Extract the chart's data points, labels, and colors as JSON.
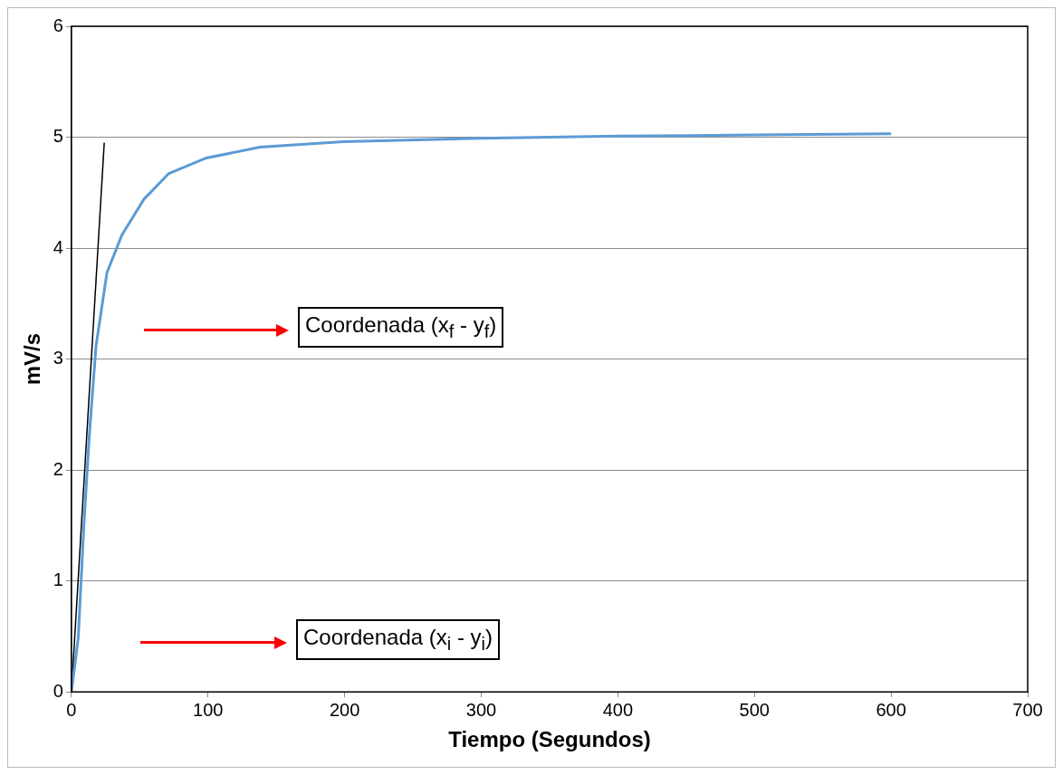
{
  "chart_data": {
    "type": "line",
    "xlabel": "Tiempo (Segundos)",
    "ylabel": "mV/s",
    "xlim": [
      0,
      700
    ],
    "xticks": [
      0,
      100,
      200,
      300,
      400,
      500,
      600,
      700
    ],
    "ylim": [
      0,
      6
    ],
    "yticks": [
      0,
      1,
      2,
      3,
      4,
      5,
      6
    ],
    "grid": "y",
    "legend": false,
    "marker": "none",
    "line_style": "solid",
    "series": [
      {
        "color": "#5b9bd5",
        "x": [
          0,
          5,
          9,
          13,
          18,
          26,
          37,
          53,
          71,
          98,
          138,
          199,
          300,
          400,
          500,
          600
        ],
        "values": [
          0,
          0.49,
          1.48,
          2.3,
          3.12,
          3.78,
          4.12,
          4.44,
          4.67,
          4.81,
          4.91,
          4.96,
          4.99,
          5.01,
          5.02,
          5.03
        ]
      },
      {
        "color": "#000000",
        "x": [
          0,
          24
        ],
        "values": [
          0,
          4.95
        ]
      }
    ],
    "annotations": [
      "Coordenada (x$_{f}$ - y$_{f}$)",
      "Coordenada (x$_{i}$ - y$_{i}$)"
    ]
  }
}
